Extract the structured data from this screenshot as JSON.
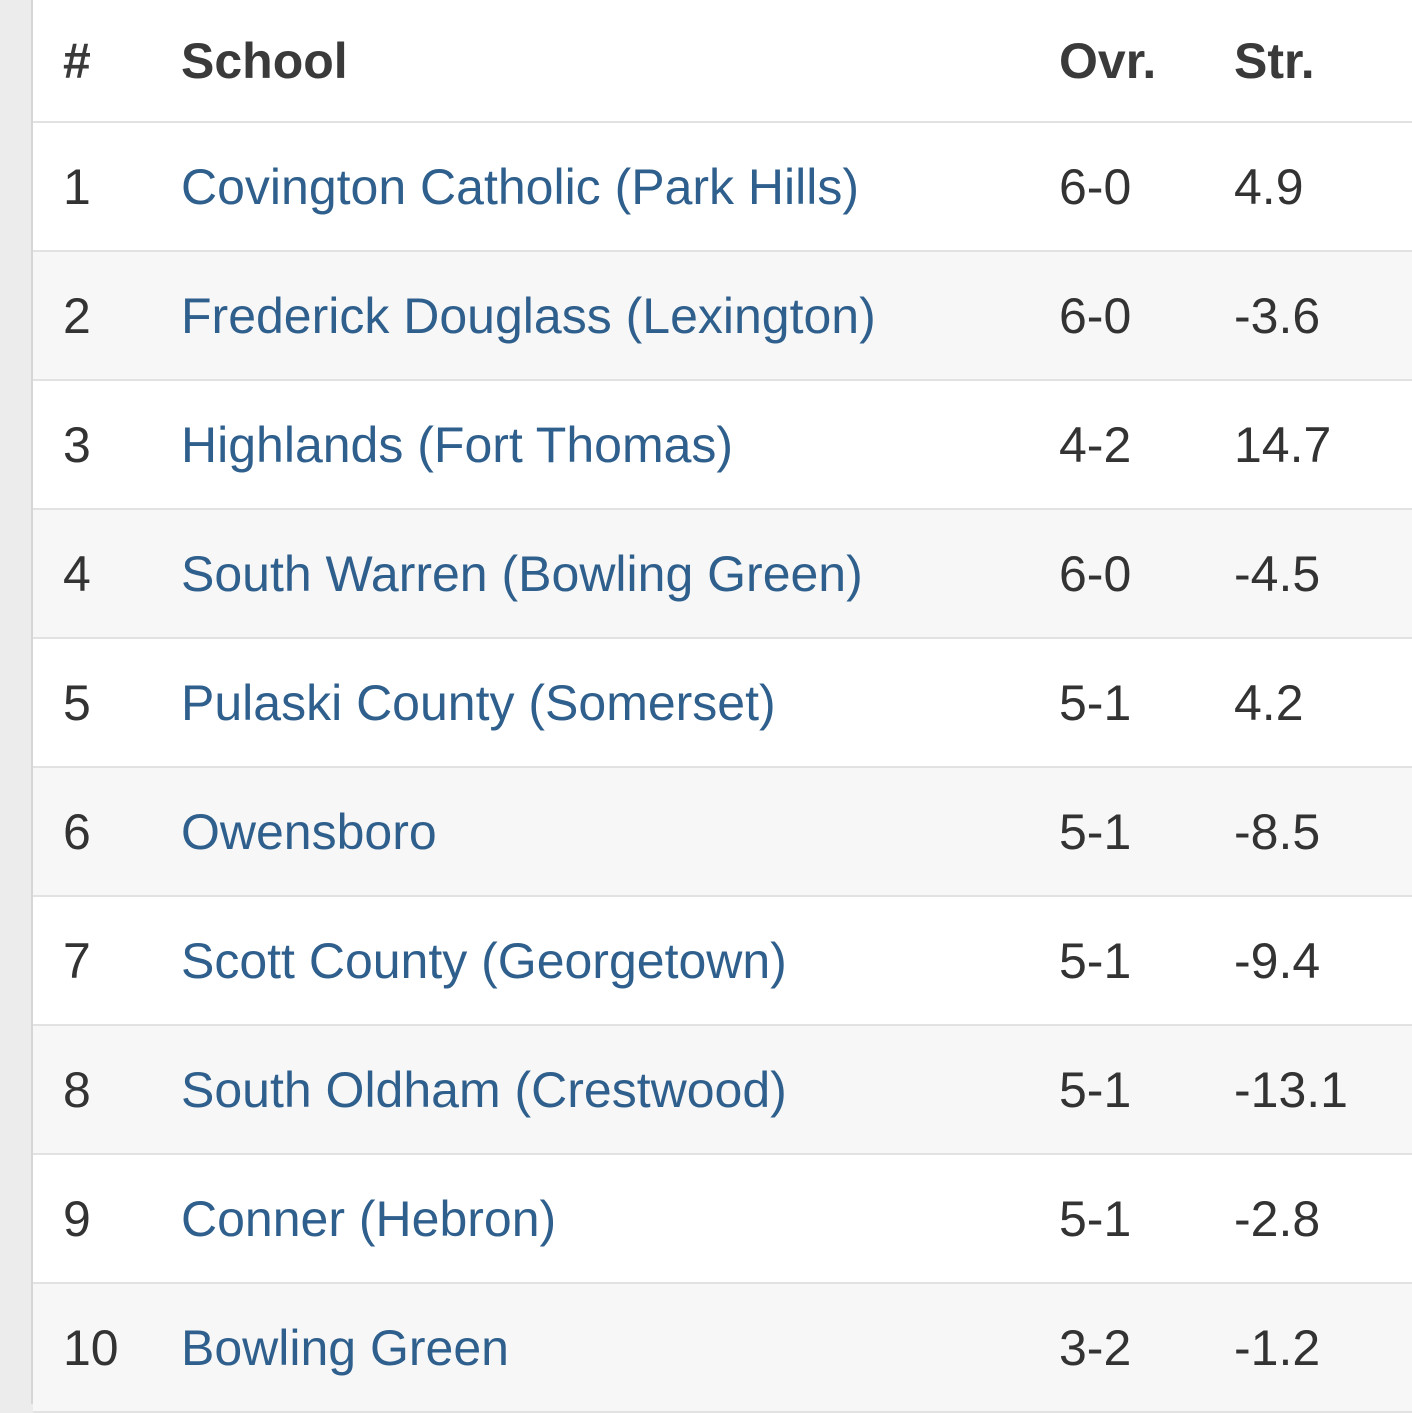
{
  "table": {
    "header": [
      "#",
      "School",
      "Ovr.",
      "Str."
    ],
    "rows": [
      [
        1,
        "Covington Catholic (Park Hills)",
        "6-0",
        4.9
      ],
      [
        2,
        "Frederick Douglass (Lexington)",
        "6-0",
        -3.6
      ],
      [
        3,
        "Highlands (Fort Thomas)",
        "4-2",
        14.7
      ],
      [
        4,
        "South Warren (Bowling Green)",
        "6-0",
        -4.5
      ],
      [
        5,
        "Pulaski County (Somerset)",
        "5-1",
        4.2
      ],
      [
        6,
        "Owensboro",
        "5-1",
        -8.5
      ],
      [
        7,
        "Scott County (Georgetown)",
        "5-1",
        -9.4
      ],
      [
        8,
        "South Oldham (Crestwood)",
        "5-1",
        -13.1
      ],
      [
        9,
        "Conner (Hebron)",
        "5-1",
        -2.8
      ],
      [
        10,
        "Bowling Green",
        "3-2",
        -1.2
      ]
    ]
  }
}
